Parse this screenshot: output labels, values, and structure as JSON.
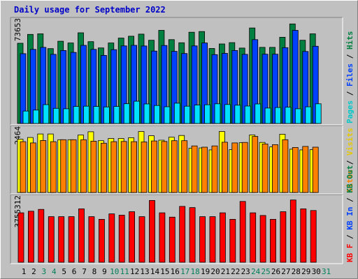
{
  "window": {
    "title": "Daily usage for September 2022",
    "background_color": "#c0c0c0",
    "title_color": "#0000c8"
  },
  "chart_data": [
    {
      "type": "bar",
      "panel": "hits-files-pages",
      "categories": [
        "1",
        "2",
        "3",
        "4",
        "5",
        "6",
        "7",
        "8",
        "9",
        "10",
        "11",
        "12",
        "13",
        "14",
        "15",
        "16",
        "17",
        "18",
        "19",
        "20",
        "21",
        "22",
        "23",
        "24",
        "25",
        "26",
        "27",
        "28",
        "29",
        "30",
        "31"
      ],
      "max_label": "73653",
      "ylim": [
        0,
        73653
      ],
      "series": [
        {
          "name": "Hits",
          "color": "#008040",
          "values": [
            58800,
            65300,
            65700,
            54900,
            60300,
            59000,
            66500,
            60000,
            55400,
            59000,
            62600,
            64000,
            65500,
            61000,
            68300,
            61500,
            59200,
            66900,
            67400,
            55000,
            58300,
            59300,
            55300,
            70000,
            55800,
            55800,
            63200,
            73000,
            61000,
            65700,
            0
          ]
        },
        {
          "name": "Files",
          "color": "#0040ff",
          "values": [
            51200,
            54300,
            55800,
            50700,
            53500,
            52100,
            57300,
            54300,
            49900,
            54100,
            56900,
            57300,
            56800,
            53100,
            57200,
            52900,
            51300,
            56900,
            59000,
            50500,
            51400,
            53500,
            50700,
            61500,
            50800,
            50800,
            55600,
            68300,
            52800,
            56600,
            0
          ]
        },
        {
          "name": "Pages",
          "color": "#00e0ff",
          "values": [
            9100,
            9800,
            13800,
            11100,
            10800,
            12500,
            12700,
            12500,
            12100,
            12500,
            14500,
            16300,
            14300,
            13200,
            12300,
            14900,
            12700,
            13500,
            13700,
            14400,
            13900,
            13400,
            12800,
            14300,
            11300,
            11700,
            11900,
            10800,
            12200,
            14400,
            0
          ]
        }
      ]
    },
    {
      "type": "bar",
      "panel": "visits-sites",
      "categories": [
        "1",
        "2",
        "3",
        "4",
        "5",
        "6",
        "7",
        "8",
        "9",
        "10",
        "11",
        "12",
        "13",
        "14",
        "15",
        "16",
        "17",
        "18",
        "19",
        "20",
        "21",
        "22",
        "23",
        "24",
        "25",
        "26",
        "27",
        "28",
        "29",
        "30",
        "31"
      ],
      "max_label": "2464",
      "ylim": [
        0,
        2464
      ],
      "series": [
        {
          "name": "Visits",
          "color": "#ffff00",
          "values": [
            2140,
            2210,
            2350,
            2350,
            2120,
            2120,
            2310,
            2440,
            2080,
            2170,
            2170,
            2200,
            2450,
            2280,
            2100,
            2220,
            2290,
            1780,
            1790,
            1710,
            2450,
            1720,
            2000,
            2310,
            2010,
            1830,
            2340,
            1740,
            1710,
            1720,
            0
          ]
        },
        {
          "name": "Sites",
          "color": "#ff8000",
          "values": [
            2040,
            1990,
            2090,
            2040,
            2120,
            2120,
            2120,
            2060,
            1980,
            2040,
            2050,
            2040,
            2030,
            2070,
            2050,
            2080,
            2080,
            1870,
            1820,
            1870,
            2020,
            1990,
            2010,
            2250,
            1950,
            1920,
            2120,
            1810,
            1850,
            1820,
            0
          ]
        }
      ]
    },
    {
      "type": "bar",
      "panel": "kbytes",
      "categories": [
        "1",
        "2",
        "3",
        "4",
        "5",
        "6",
        "7",
        "8",
        "9",
        "10",
        "11",
        "12",
        "13",
        "14",
        "15",
        "16",
        "17",
        "18",
        "19",
        "20",
        "21",
        "22",
        "23",
        "24",
        "25",
        "26",
        "27",
        "28",
        "29",
        "30",
        "31"
      ],
      "max_label": "3755312",
      "ylim": [
        0,
        3755312
      ],
      "series": [
        {
          "name": "KB F",
          "color": "#ff0000",
          "values": [
            2990000,
            3090000,
            3200000,
            2760000,
            2760000,
            2760000,
            3230000,
            2760000,
            2600000,
            2930000,
            2850000,
            3060000,
            2760000,
            3740000,
            2990000,
            2730000,
            3380000,
            3310000,
            2760000,
            2760000,
            2990000,
            2600000,
            3680000,
            2990000,
            2830000,
            2600000,
            3060000,
            3770000,
            3230000,
            3130000,
            0
          ]
        }
      ]
    }
  ],
  "legend": {
    "panel1": [
      {
        "text": "Pages",
        "color": "#00c8c8"
      },
      {
        "text": " / ",
        "color": "#000000"
      },
      {
        "text": "Files",
        "color": "#0040ff"
      },
      {
        "text": " / ",
        "color": "#000000"
      },
      {
        "text": "Hits",
        "color": "#008040"
      }
    ],
    "panel2": [
      {
        "text": "Sites",
        "color": "#ff8000"
      },
      {
        "text": " / ",
        "color": "#000000"
      },
      {
        "text": "Visits",
        "color": "#e6c800"
      }
    ],
    "panel3": [
      {
        "text": "KB F",
        "color": "#ff0000"
      },
      {
        "text": " / ",
        "color": "#000000"
      },
      {
        "text": "KB In",
        "color": "#0040ff"
      },
      {
        "text": " / ",
        "color": "#000000"
      },
      {
        "text": "KB Out",
        "color": "#008040"
      }
    ]
  },
  "day_label_colors": {
    "weekday": "#000000",
    "weekend": "#00805a"
  },
  "weekend_days": [
    3,
    4,
    10,
    11,
    17,
    18,
    24,
    25,
    31
  ]
}
